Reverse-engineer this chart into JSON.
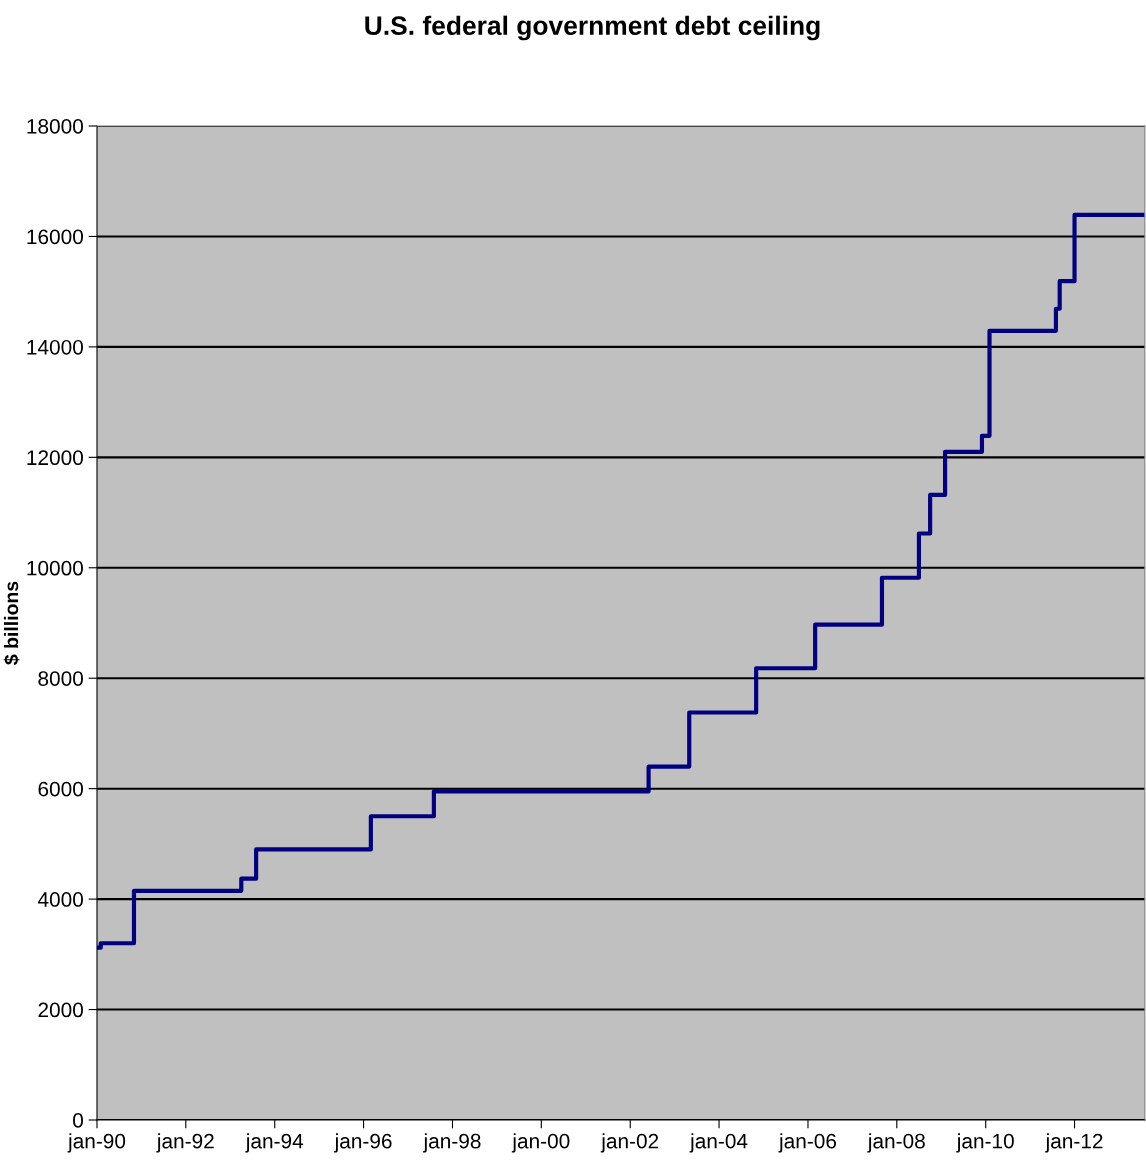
{
  "chart_data": {
    "type": "step",
    "title": "U.S. federal government debt ceiling",
    "ylabel": "$ billions",
    "x": [
      "1990-01",
      "1990-02",
      "1990-11",
      "1993-04",
      "1993-08",
      "1996-03",
      "1997-08",
      "2002-06",
      "2003-05",
      "2004-11",
      "2006-03",
      "2007-09",
      "2008-07",
      "2008-10",
      "2009-02",
      "2009-12",
      "2010-02",
      "2011-08",
      "2011-09",
      "2012-01",
      "2013-08"
    ],
    "series": [
      {
        "color": "#000080",
        "values": [
          3120,
          3200,
          4150,
          4370,
          4900,
          5500,
          5950,
          6400,
          7380,
          8180,
          8970,
          9820,
          10620,
          11320,
          12100,
          12390,
          14290,
          14690,
          15190,
          16390,
          16390
        ]
      }
    ],
    "xlim": [
      "1990-01",
      "2013-08"
    ],
    "xticks": [
      {
        "value": "1990-01",
        "label": "jan-90"
      },
      {
        "value": "1992-01",
        "label": "jan-92"
      },
      {
        "value": "1994-01",
        "label": "jan-94"
      },
      {
        "value": "1996-01",
        "label": "jan-96"
      },
      {
        "value": "1998-01",
        "label": "jan-98"
      },
      {
        "value": "2000-01",
        "label": "jan-00"
      },
      {
        "value": "2002-01",
        "label": "jan-02"
      },
      {
        "value": "2004-01",
        "label": "jan-04"
      },
      {
        "value": "2006-01",
        "label": "jan-06"
      },
      {
        "value": "2008-01",
        "label": "jan-08"
      },
      {
        "value": "2010-01",
        "label": "jan-10"
      },
      {
        "value": "2012-01",
        "label": "jan-12"
      }
    ],
    "ylim": [
      0,
      18000
    ],
    "yticks": [
      0,
      2000,
      4000,
      6000,
      8000,
      10000,
      12000,
      14000,
      16000,
      18000
    ],
    "grid": "y",
    "legend": false,
    "marker": "none",
    "line_style": "solid"
  }
}
